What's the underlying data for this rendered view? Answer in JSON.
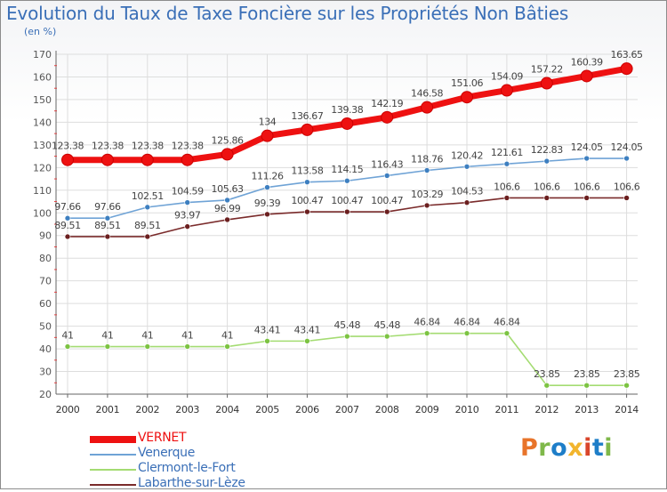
{
  "title": "Evolution du Taux de Taxe Foncière sur les Propriétés Non Bâties",
  "unit_label": "(en %)",
  "logo": {
    "text": "Proxiti",
    "colors": [
      "#e8742a",
      "#7fb84a",
      "#1e7ec8",
      "#f2b52d",
      "#d9452b",
      "#1e7ec8",
      "#7fb84a"
    ]
  },
  "chart_data": {
    "type": "line",
    "title": "Evolution du Taux de Taxe Foncière sur les Propriétés Non Bâties",
    "ylabel": "(en %)",
    "xlabel": "",
    "ylim": [
      20,
      170
    ],
    "y_ticks": [
      "20",
      "30",
      "40",
      "50",
      "60",
      "70",
      "80",
      "90",
      "100",
      "110",
      "120",
      "130",
      "140",
      "150",
      "160",
      "170"
    ],
    "x": [
      "2000",
      "2001",
      "2002",
      "2003",
      "2004",
      "2005",
      "2006",
      "2007",
      "2008",
      "2009",
      "2010",
      "2011",
      "2012",
      "2013",
      "2014"
    ],
    "grid": true,
    "legend_position": "bottom-left",
    "series": [
      {
        "name": "VERNET",
        "color": "#ee1111",
        "emphasis": true,
        "values": [
          123.38,
          123.38,
          123.38,
          123.38,
          125.86,
          134,
          136.67,
          139.38,
          142.19,
          146.58,
          151.06,
          154.09,
          157.22,
          160.39,
          163.65
        ],
        "labels": [
          "123.38",
          "123.38",
          "123.38",
          "123.38",
          "125.86",
          "134",
          "136.67",
          "139.38",
          "142.19",
          "146.58",
          "151.06",
          "154.09",
          "157.22",
          "160.39",
          "163.65"
        ]
      },
      {
        "name": "Venerque",
        "color": "#6fa3d6",
        "marker": "#3d7fc0",
        "values": [
          97.66,
          97.66,
          102.51,
          104.59,
          105.63,
          111.26,
          113.58,
          114.15,
          116.43,
          118.76,
          120.42,
          121.61,
          122.83,
          124.05,
          124.05
        ],
        "labels": [
          "97.66",
          "97.66",
          "102.51",
          "104.59",
          "105.63",
          "111.26",
          "113.58",
          "114.15",
          "116.43",
          "118.76",
          "120.42",
          "121.61",
          "122.83",
          "124.05",
          "124.05"
        ]
      },
      {
        "name": "Clermont-le-Fort",
        "color": "#a4dc72",
        "marker": "#7cc342",
        "values": [
          41,
          41,
          41,
          41,
          41,
          43.41,
          43.41,
          45.48,
          45.48,
          46.84,
          46.84,
          46.84,
          23.85,
          23.85,
          23.85
        ],
        "labels": [
          "41",
          "41",
          "41",
          "41",
          "41",
          "43.41",
          "43.41",
          "45.48",
          "45.48",
          "46.84",
          "46.84",
          "46.84",
          "23.85",
          "23.85",
          "23.85"
        ]
      },
      {
        "name": "Labarthe-sur-Lèze",
        "color": "#7a2b2b",
        "marker": "#6b1f1f",
        "values": [
          89.51,
          89.51,
          89.51,
          93.97,
          96.99,
          99.39,
          100.47,
          100.47,
          100.47,
          103.29,
          104.53,
          106.6,
          106.6,
          106.6,
          106.6
        ],
        "labels": [
          "89.51",
          "89.51",
          "89.51",
          "93.97",
          "96.99",
          "99.39",
          "100.47",
          "100.47",
          "100.47",
          "103.29",
          "104.53",
          "106.6",
          "106.6",
          "106.6",
          "106.6"
        ]
      }
    ]
  }
}
